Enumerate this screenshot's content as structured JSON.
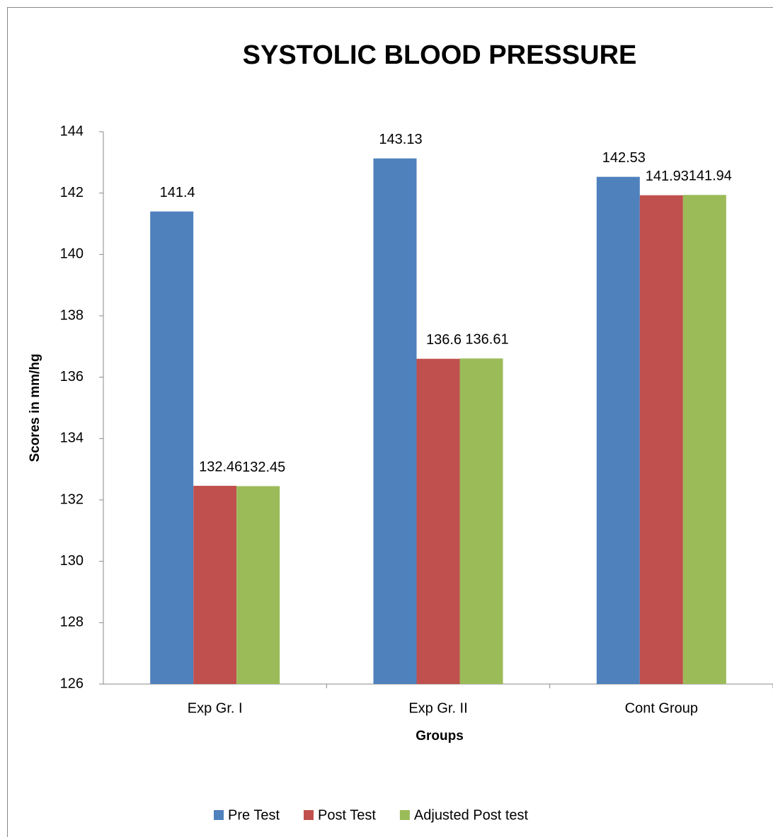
{
  "chart_data": {
    "type": "bar",
    "title": "SYSTOLIC BLOOD PRESSURE",
    "x_label": "Groups",
    "y_label": "Scores in mm/hg",
    "categories": [
      "Exp Gr. I",
      "Exp Gr. II",
      "Cont Group"
    ],
    "series": [
      {
        "name": "Pre Test",
        "color": "#4f81bd",
        "values": [
          141.4,
          143.13,
          142.53
        ]
      },
      {
        "name": "Post Test",
        "color": "#c0504d",
        "values": [
          132.46,
          136.6,
          141.93
        ]
      },
      {
        "name": "Adjusted Post test",
        "color": "#9bbb59",
        "values": [
          132.45,
          136.61,
          141.94
        ]
      }
    ],
    "ylim": [
      126,
      144
    ],
    "yticks": [
      126,
      128,
      130,
      132,
      134,
      136,
      138,
      140,
      142,
      144
    ],
    "grid": false,
    "legend": "bottom"
  }
}
